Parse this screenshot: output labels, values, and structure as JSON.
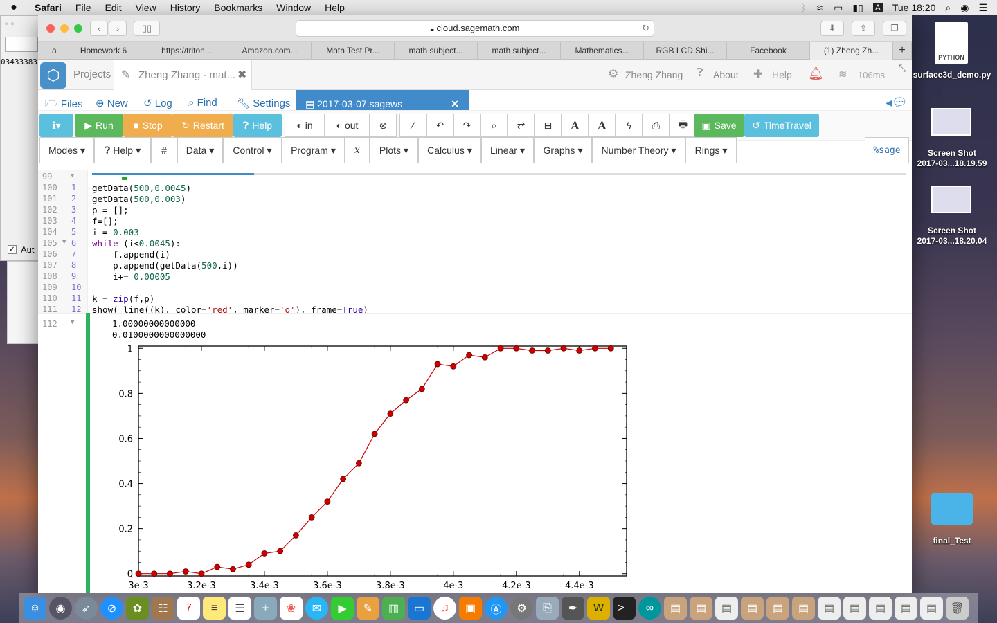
{
  "menubar": {
    "apple": "",
    "items": [
      "Safari",
      "File",
      "Edit",
      "View",
      "History",
      "Bookmarks",
      "Window",
      "Help"
    ],
    "clock": "Tue 18:20",
    "input_indicator": "A"
  },
  "background": {
    "left_text": "03433383",
    "checkbox_label": "Aut"
  },
  "browser": {
    "url": "cloud.sagemath.com",
    "tabs": [
      "a",
      "Homework 6",
      "https://triton...",
      "Amazon.com...",
      "Math Test Pr...",
      "math subject...",
      "math subject...",
      "Mathematics...",
      "RGB LCD Shi...",
      "Facebook",
      "(1) Zheng Zh..."
    ],
    "active_tab": 10
  },
  "cocalc": {
    "projects": "Projects",
    "project_name": "Zheng Zhang - mat...",
    "user": "Zheng Zhang",
    "about": "About",
    "help": "Help",
    "latency": "106ms",
    "files": "Files",
    "new": "New",
    "log": "Log",
    "find": "Find",
    "settings": "Settings",
    "file_tab": "2017-03-07.sagews"
  },
  "toolbar": {
    "run": "Run",
    "stop": "Stop",
    "restart": "Restart",
    "help": "Help",
    "in": "in",
    "out": "out",
    "save": "Save",
    "timetravel": "TimeTravel",
    "font_a1": "A",
    "font_a2": "A"
  },
  "menus": [
    "Modes",
    "Help",
    "#",
    "Data",
    "Control",
    "Program",
    "x",
    "Plots",
    "Calculus",
    "Linear",
    "Graphs",
    "Number Theory",
    "Rings"
  ],
  "mode_label": "%sage",
  "editor": {
    "gutter": [
      "99",
      "100",
      "101",
      "102",
      "103",
      "104",
      "105",
      "106",
      "107",
      "108",
      "109",
      "110",
      "111"
    ],
    "cell_lines": [
      "",
      "1",
      "2",
      "3",
      "4",
      "5",
      "6",
      "7",
      "8",
      "9",
      "10",
      "11",
      "12"
    ],
    "code": [
      "",
      "getData(500,0.0045)",
      "getData(500,0.003)",
      "p = [];",
      "f=[];",
      "i = 0.003",
      "while (i<0.0045):",
      "    f.append(i)",
      "    p.append(getData(500,i))",
      "    i+= 0.00005",
      "",
      "k = zip(f,p)",
      "show( line((k), color='red', marker='o'), frame=True)"
    ],
    "output_line_no": "112",
    "output_text": [
      "1.00000000000000",
      "0.0100000000000000"
    ]
  },
  "chart_data": {
    "type": "line",
    "title": "",
    "xlabel": "",
    "ylabel": "",
    "color": "#cc0000",
    "marker": "o",
    "xlim": [
      0.003,
      0.00455
    ],
    "ylim": [
      -0.01,
      1.01
    ],
    "xticks": [
      "3e-3",
      "3.2e-3",
      "3.4e-3",
      "3.6e-3",
      "3.8e-3",
      "4e-3",
      "4.2e-3",
      "4.4e-3"
    ],
    "xtick_values": [
      0.003,
      0.0032,
      0.0034,
      0.0036,
      0.0038,
      0.004,
      0.0042,
      0.0044
    ],
    "yticks": [
      "0",
      "0.2",
      "0.4",
      "0.6",
      "0.8",
      "1"
    ],
    "ytick_values": [
      0,
      0.2,
      0.4,
      0.6,
      0.8,
      1
    ],
    "x": [
      0.003,
      0.00305,
      0.0031,
      0.00315,
      0.0032,
      0.00325,
      0.0033,
      0.00335,
      0.0034,
      0.00345,
      0.0035,
      0.00355,
      0.0036,
      0.00365,
      0.0037,
      0.00375,
      0.0038,
      0.00385,
      0.0039,
      0.00395,
      0.004,
      0.00405,
      0.0041,
      0.00415,
      0.0042,
      0.00425,
      0.0043,
      0.00435,
      0.0044,
      0.00445,
      0.0045
    ],
    "y": [
      0,
      0,
      0,
      0.01,
      0,
      0.03,
      0.02,
      0.04,
      0.09,
      0.1,
      0.17,
      0.25,
      0.32,
      0.42,
      0.49,
      0.62,
      0.71,
      0.77,
      0.82,
      0.93,
      0.92,
      0.97,
      0.96,
      1.0,
      1.0,
      0.99,
      0.99,
      1.0,
      0.99,
      1.0,
      1.0
    ]
  },
  "desktop": {
    "icons": [
      "PYTHON",
      "surface3d_demo.py",
      "Screen Shot\n2017-03...18.19.59",
      "Screen Shot\n2017-03...18.20.04",
      "final_Test"
    ]
  }
}
